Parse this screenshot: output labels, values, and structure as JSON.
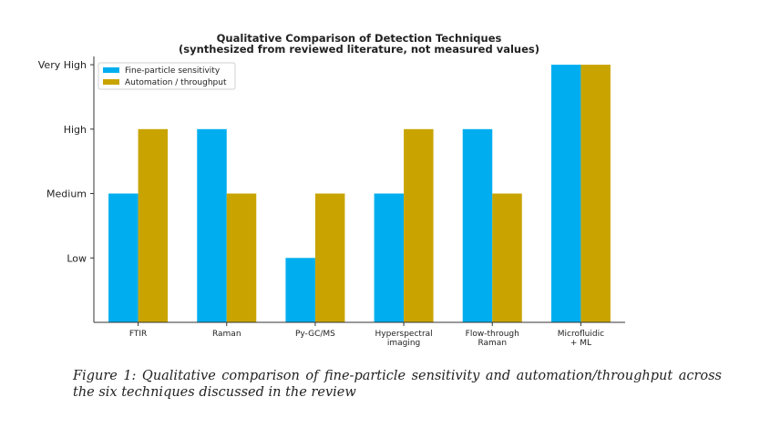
{
  "chart_data": {
    "type": "bar",
    "title": "Qualitative Comparison of Detection Techniques",
    "subtitle": "(synthesized from reviewed literature, not measured values)",
    "categories": [
      [
        "FTIR"
      ],
      [
        "Raman"
      ],
      [
        "Py-GC/MS"
      ],
      [
        "Hyperspectral",
        "imaging"
      ],
      [
        "Flow-through",
        "Raman"
      ],
      [
        "Microfluidic",
        "+ ML"
      ]
    ],
    "yticks": [
      {
        "value": 1,
        "label": "Low"
      },
      {
        "value": 2,
        "label": "Medium"
      },
      {
        "value": 3,
        "label": "High"
      },
      {
        "value": 4,
        "label": "Very High"
      }
    ],
    "ylim": [
      0,
      4.1
    ],
    "series": [
      {
        "name": "Fine-particle sensitivity",
        "color": "#00aeef",
        "values": [
          2,
          3,
          1,
          2,
          3,
          4
        ]
      },
      {
        "name": "Automation / throughput",
        "color": "#c9a400",
        "values": [
          3,
          2,
          2,
          3,
          2,
          4
        ]
      }
    ],
    "legend_position": "top-left",
    "grid": false
  },
  "caption": "Figure 1: Qualitative comparison of fine-particle sensitivity and automation/throughput across the six techniques discussed in the review"
}
